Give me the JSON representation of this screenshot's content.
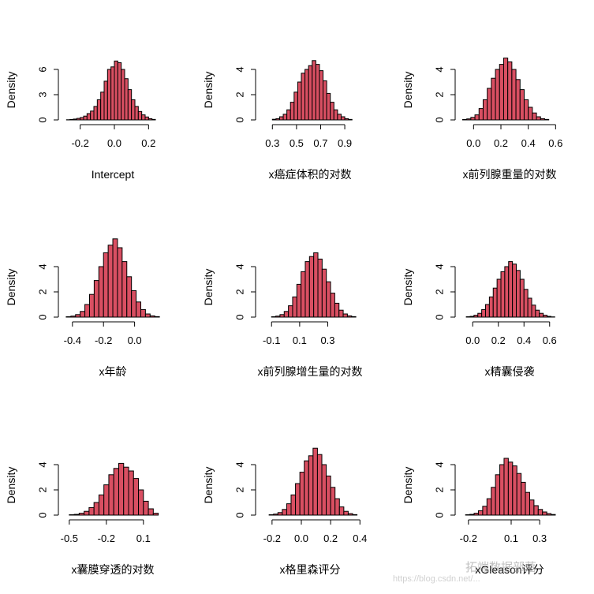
{
  "chart_data": [
    {
      "type": "bar",
      "xlabel": "Intercept",
      "ylabel": "Density",
      "bin_edges": [
        -0.28,
        -0.26,
        -0.24,
        -0.22,
        -0.2,
        -0.18,
        -0.16,
        -0.14,
        -0.12,
        -0.1,
        -0.08,
        -0.06,
        -0.04,
        -0.02,
        0.0,
        0.02,
        0.04,
        0.06,
        0.08,
        0.1,
        0.12,
        0.14,
        0.16,
        0.18,
        0.2,
        0.22,
        0.24
      ],
      "values": [
        0.02,
        0.05,
        0.1,
        0.18,
        0.28,
        0.45,
        0.75,
        1.05,
        1.6,
        2.4,
        3.3,
        4.6,
        6.0,
        6.3,
        7.0,
        6.8,
        6.0,
        4.9,
        3.6,
        2.4,
        1.6,
        1.0,
        0.6,
        0.35,
        0.15,
        0.06
      ],
      "xlim": [
        -0.3,
        0.3
      ],
      "x_ticks": [
        -0.2,
        0.0,
        0.2
      ],
      "x_tick_labels": [
        "-0.2",
        "0.0",
        "0.2"
      ],
      "y_ticks": [
        0,
        3,
        6
      ],
      "y_tick_labels": [
        "0",
        "3",
        "6"
      ]
    },
    {
      "type": "bar",
      "xlabel": "x癌症体积的对数",
      "ylabel": "Density",
      "bin_edges": [
        0.3,
        0.33,
        0.36,
        0.39,
        0.42,
        0.45,
        0.48,
        0.51,
        0.54,
        0.57,
        0.6,
        0.63,
        0.66,
        0.69,
        0.72,
        0.75,
        0.78,
        0.81,
        0.84,
        0.87,
        0.9,
        0.93,
        0.96
      ],
      "values": [
        0.05,
        0.1,
        0.25,
        0.45,
        0.8,
        1.4,
        2.2,
        3.0,
        3.7,
        4.0,
        4.3,
        4.7,
        4.4,
        3.9,
        3.1,
        2.1,
        1.4,
        0.8,
        0.45,
        0.25,
        0.1,
        0.04
      ],
      "xlim": [
        0.2,
        1.05
      ],
      "x_ticks": [
        0.3,
        0.5,
        0.7,
        0.9
      ],
      "x_tick_labels": [
        "0.3",
        "0.5",
        "0.7",
        "0.9"
      ],
      "y_ticks": [
        0,
        2,
        4
      ],
      "y_tick_labels": [
        "0",
        "2",
        "4"
      ]
    },
    {
      "type": "bar",
      "xlabel": "x前列腺重量的对数",
      "ylabel": "Density",
      "bin_edges": [
        -0.08,
        -0.05,
        -0.02,
        0.01,
        0.04,
        0.07,
        0.1,
        0.13,
        0.16,
        0.19,
        0.22,
        0.25,
        0.28,
        0.31,
        0.34,
        0.37,
        0.4,
        0.43,
        0.46,
        0.49,
        0.52,
        0.55
      ],
      "values": [
        0.03,
        0.08,
        0.2,
        0.4,
        0.9,
        1.6,
        2.5,
        3.3,
        4.0,
        4.4,
        4.9,
        4.6,
        4.0,
        3.2,
        2.4,
        1.6,
        1.0,
        0.55,
        0.25,
        0.1,
        0.04
      ],
      "xlim": [
        -0.1,
        0.65
      ],
      "x_ticks": [
        0.0,
        0.2,
        0.4,
        0.6
      ],
      "x_tick_labels": [
        "0.0",
        "0.2",
        "0.4",
        "0.6"
      ],
      "y_ticks": [
        0,
        2,
        4
      ],
      "y_tick_labels": [
        "0",
        "2",
        "4"
      ]
    },
    {
      "type": "bar",
      "xlabel": "x年龄",
      "ylabel": "Density",
      "bin_edges": [
        -0.44,
        -0.41,
        -0.38,
        -0.35,
        -0.32,
        -0.29,
        -0.26,
        -0.23,
        -0.2,
        -0.17,
        -0.14,
        -0.11,
        -0.08,
        -0.05,
        -0.02,
        0.01,
        0.04,
        0.07,
        0.1,
        0.13,
        0.16
      ],
      "values": [
        0.03,
        0.08,
        0.2,
        0.45,
        1.0,
        1.8,
        2.9,
        4.0,
        5.1,
        5.7,
        6.2,
        5.5,
        4.4,
        3.2,
        2.1,
        1.2,
        0.6,
        0.25,
        0.1,
        0.04
      ],
      "xlim": [
        -0.46,
        0.2
      ],
      "x_ticks": [
        -0.4,
        -0.2,
        0.0
      ],
      "x_tick_labels": [
        "-0.4",
        "-0.2",
        "0.0"
      ],
      "y_ticks": [
        0,
        2,
        4
      ],
      "y_tick_labels": [
        "0",
        "2",
        "4"
      ]
    },
    {
      "type": "bar",
      "xlabel": "x前列腺增生量的对数",
      "ylabel": "Density",
      "bin_edges": [
        -0.1,
        -0.07,
        -0.04,
        -0.01,
        0.02,
        0.05,
        0.08,
        0.11,
        0.14,
        0.17,
        0.2,
        0.23,
        0.26,
        0.29,
        0.32,
        0.35,
        0.38,
        0.41,
        0.44,
        0.47,
        0.5
      ],
      "values": [
        0.03,
        0.08,
        0.2,
        0.45,
        0.9,
        1.6,
        2.6,
        3.6,
        4.4,
        4.8,
        5.1,
        4.6,
        3.8,
        2.8,
        1.9,
        1.1,
        0.55,
        0.25,
        0.1,
        0.04
      ],
      "xlim": [
        -0.18,
        0.55
      ],
      "x_ticks": [
        -0.1,
        0.1,
        0.3
      ],
      "x_tick_labels": [
        "-0.1",
        "0.1",
        "0.3"
      ],
      "y_ticks": [
        0,
        2,
        4
      ],
      "y_tick_labels": [
        "0",
        "2",
        "4"
      ]
    },
    {
      "type": "bar",
      "xlabel": "x精囊侵袭",
      "ylabel": "Density",
      "bin_edges": [
        -0.05,
        -0.02,
        0.01,
        0.04,
        0.07,
        0.1,
        0.13,
        0.16,
        0.19,
        0.22,
        0.25,
        0.28,
        0.31,
        0.34,
        0.37,
        0.4,
        0.43,
        0.46,
        0.49,
        0.52,
        0.55,
        0.58,
        0.61,
        0.64
      ],
      "values": [
        0.03,
        0.06,
        0.15,
        0.3,
        0.6,
        1.0,
        1.6,
        2.3,
        3.0,
        3.6,
        4.0,
        4.4,
        4.2,
        3.7,
        3.0,
        2.2,
        1.5,
        0.95,
        0.55,
        0.3,
        0.15,
        0.06,
        0.02
      ],
      "xlim": [
        -0.1,
        0.7
      ],
      "x_ticks": [
        0.0,
        0.2,
        0.4,
        0.6
      ],
      "x_tick_labels": [
        "0.0",
        "0.2",
        "0.4",
        "0.6"
      ],
      "y_ticks": [
        0,
        2,
        4
      ],
      "y_tick_labels": [
        "0",
        "2",
        "4"
      ]
    },
    {
      "type": "bar",
      "xlabel": "x囊膜穿透的对数",
      "ylabel": "Density",
      "bin_edges": [
        -0.5,
        -0.46,
        -0.42,
        -0.38,
        -0.34,
        -0.3,
        -0.26,
        -0.22,
        -0.18,
        -0.14,
        -0.1,
        -0.06,
        -0.02,
        0.02,
        0.06,
        0.1,
        0.14,
        0.18,
        0.22
      ],
      "values": [
        0.03,
        0.06,
        0.15,
        0.3,
        0.6,
        1.0,
        1.6,
        2.4,
        3.2,
        3.7,
        4.1,
        3.8,
        3.5,
        2.9,
        2.0,
        1.1,
        0.5,
        0.15
      ],
      "xlim": [
        -0.55,
        0.28
      ],
      "x_ticks": [
        -0.5,
        -0.2,
        0.1
      ],
      "x_tick_labels": [
        "-0.5",
        "-0.2",
        "0.1"
      ],
      "y_ticks": [
        0,
        2,
        4
      ],
      "y_tick_labels": [
        "0",
        "2",
        "4"
      ]
    },
    {
      "type": "bar",
      "xlabel": "x格里森评分",
      "ylabel": "Density",
      "bin_edges": [
        -0.22,
        -0.19,
        -0.16,
        -0.13,
        -0.1,
        -0.07,
        -0.04,
        -0.01,
        0.02,
        0.05,
        0.08,
        0.11,
        0.14,
        0.17,
        0.2,
        0.23,
        0.26,
        0.29,
        0.32,
        0.35,
        0.38
      ],
      "values": [
        0.03,
        0.08,
        0.2,
        0.45,
        0.9,
        1.6,
        2.5,
        3.4,
        4.3,
        4.7,
        5.3,
        4.8,
        4.0,
        3.1,
        2.2,
        1.3,
        0.65,
        0.3,
        0.12,
        0.04
      ],
      "xlim": [
        -0.28,
        0.42
      ],
      "x_ticks": [
        -0.2,
        0.0,
        0.2,
        0.4
      ],
      "x_tick_labels": [
        "-0.2",
        "0.0",
        "0.2",
        "0.4"
      ],
      "y_ticks": [
        0,
        2,
        4
      ],
      "y_tick_labels": [
        "0",
        "2",
        "4"
      ]
    },
    {
      "type": "bar",
      "xlabel": "xGleason评分",
      "ylabel": "Density",
      "bin_edges": [
        -0.22,
        -0.19,
        -0.16,
        -0.13,
        -0.1,
        -0.07,
        -0.04,
        -0.01,
        0.02,
        0.05,
        0.08,
        0.11,
        0.14,
        0.17,
        0.2,
        0.23,
        0.26,
        0.29,
        0.32,
        0.35,
        0.38,
        0.41
      ],
      "values": [
        0.03,
        0.06,
        0.15,
        0.35,
        0.7,
        1.3,
        2.2,
        3.2,
        4.0,
        4.5,
        4.2,
        3.9,
        3.3,
        2.6,
        1.8,
        1.2,
        0.75,
        0.45,
        0.25,
        0.12,
        0.05
      ],
      "xlim": [
        -0.26,
        0.46
      ],
      "x_ticks": [
        -0.2,
        0.1,
        0.3
      ],
      "x_tick_labels": [
        "-0.2",
        "0.1",
        "0.3"
      ],
      "y_ticks": [
        0,
        2,
        4
      ],
      "y_tick_labels": [
        "0",
        "2",
        "4"
      ]
    }
  ],
  "colors": {
    "bar_fill": "#d94f62",
    "bar_stroke": "#000000",
    "axis": "#000000",
    "text": "#000000"
  },
  "watermark": {
    "text": "拓端数据部落",
    "url": "https://blog.csdn.net/..."
  }
}
